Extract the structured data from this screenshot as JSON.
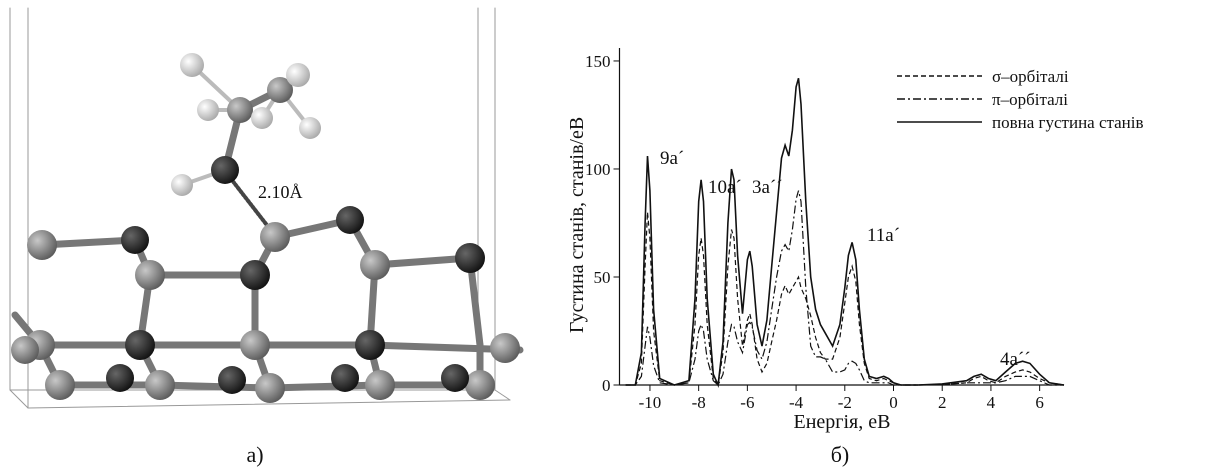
{
  "left_panel": {
    "bond_label": "2.10Å",
    "caption": "а)"
  },
  "chart_data": {
    "type": "line",
    "caption": "б)",
    "x_label": "Енергія, еВ",
    "y_label": "Густина станів, станів/еВ",
    "xlim": [
      -11.25,
      7
    ],
    "ylim": [
      0,
      156
    ],
    "xticks": [
      -10,
      -8,
      -6,
      -4,
      -2,
      0,
      2,
      4,
      6
    ],
    "yticks": [
      0,
      50,
      100,
      150
    ],
    "legend": "top-right",
    "annotations": [
      "9a´",
      "10a´",
      "3a´´",
      "11a´",
      "4a´´"
    ],
    "x": [
      -11,
      -10.6,
      -10.35,
      -10.2,
      -10.1,
      -10.0,
      -9.85,
      -9.6,
      -9.0,
      -8.4,
      -8.15,
      -8.0,
      -7.9,
      -7.8,
      -7.65,
      -7.4,
      -7.2,
      -7.0,
      -6.8,
      -6.65,
      -6.55,
      -6.4,
      -6.2,
      -6.0,
      -5.9,
      -5.8,
      -5.6,
      -5.4,
      -5.2,
      -5.0,
      -4.8,
      -4.6,
      -4.45,
      -4.3,
      -4.15,
      -4.0,
      -3.9,
      -3.8,
      -3.6,
      -3.4,
      -3.2,
      -3.0,
      -2.8,
      -2.5,
      -2.2,
      -2.0,
      -1.85,
      -1.7,
      -1.55,
      -1.4,
      -1.2,
      -1.0,
      -0.7,
      -0.4,
      -0.2,
      0.0,
      0.3,
      1.0,
      2.0,
      3.0,
      3.3,
      3.6,
      3.9,
      4.2,
      4.6,
      5.0,
      5.3,
      5.6,
      6.0,
      6.4,
      7.0
    ],
    "series": [
      {
        "name": "σ–орбіталі",
        "color": "#111111",
        "linestyle": "dashed",
        "values": [
          0,
          0,
          10,
          55,
          80,
          68,
          25,
          2,
          0,
          1,
          28,
          60,
          68,
          60,
          28,
          3,
          0,
          15,
          55,
          72,
          68,
          40,
          18,
          30,
          33,
          28,
          12,
          6,
          10,
          20,
          30,
          42,
          46,
          42,
          45,
          48,
          50,
          45,
          40,
          32,
          22,
          15,
          12,
          12,
          22,
          38,
          50,
          55,
          48,
          28,
          10,
          3,
          2,
          3,
          2,
          1,
          0,
          0,
          0.3,
          1,
          3,
          4,
          2,
          1,
          4,
          6,
          7,
          6,
          3,
          1,
          0
        ]
      },
      {
        "name": "π–орбіталі",
        "color": "#111111",
        "linestyle": "dashdot",
        "values": [
          0,
          0,
          4,
          18,
          27,
          22,
          9,
          1,
          0,
          1,
          12,
          25,
          28,
          25,
          12,
          2,
          0,
          5,
          20,
          28,
          27,
          20,
          15,
          28,
          29,
          27,
          16,
          12,
          20,
          35,
          50,
          62,
          65,
          62,
          72,
          86,
          90,
          85,
          45,
          18,
          13,
          13,
          12,
          6,
          6,
          7,
          10,
          11,
          10,
          7,
          2,
          1,
          1,
          1,
          1,
          0,
          0,
          0,
          0.2,
          1,
          1,
          1,
          1,
          1,
          2,
          4,
          4,
          4,
          2,
          0,
          0
        ]
      },
      {
        "name": "повна густина станів",
        "color": "#111111",
        "linestyle": "solid",
        "values": [
          0,
          0,
          15,
          75,
          106,
          90,
          35,
          3,
          0,
          2,
          40,
          85,
          95,
          85,
          40,
          5,
          0,
          20,
          75,
          100,
          95,
          60,
          33,
          58,
          62,
          55,
          28,
          18,
          30,
          55,
          80,
          105,
          111,
          106,
          118,
          138,
          142,
          130,
          85,
          50,
          35,
          28,
          24,
          18,
          28,
          45,
          60,
          66,
          58,
          35,
          12,
          4,
          3,
          4,
          3,
          1,
          0,
          0,
          0.5,
          2,
          4,
          5,
          3,
          2,
          6,
          10,
          11,
          10,
          5,
          1,
          0
        ]
      }
    ]
  }
}
